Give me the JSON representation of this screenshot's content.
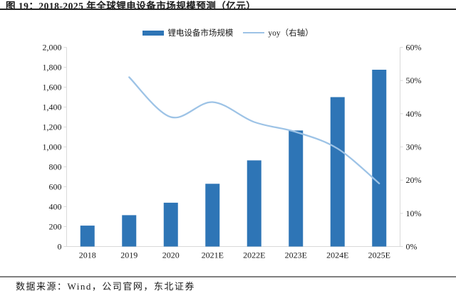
{
  "figure": {
    "title": "图 19：2018-2025 年全球锂电设备市场规模预测（亿元）",
    "source": "数据来源：Wind，公司官网，东北证券"
  },
  "legend": {
    "items": [
      {
        "label": "锂电设备市场规模",
        "marker": "bar",
        "color": "#2E75B6"
      },
      {
        "label": "yoy（右轴）",
        "marker": "line",
        "color": "#9DC3E6"
      }
    ]
  },
  "chart_data": {
    "type": "bar",
    "title": "2018-2025 年全球锂电设备市场规模预测（亿元）",
    "categories": [
      "2018",
      "2019",
      "2020",
      "2021E",
      "2022E",
      "2023E",
      "2024E",
      "2025E"
    ],
    "series": [
      {
        "name": "锂电设备市场规模",
        "type": "bar",
        "axis": "left",
        "color": "#2E75B6",
        "values": [
          210,
          315,
          440,
          630,
          865,
          1165,
          1500,
          1775
        ]
      },
      {
        "name": "yoy（右轴）",
        "type": "line",
        "axis": "right",
        "unit": "%",
        "color": "#9DC3E6",
        "values": [
          null,
          51,
          39,
          43.5,
          37.5,
          34.5,
          29.5,
          19
        ]
      }
    ],
    "left_axis": {
      "min": 0,
      "max": 2000,
      "step": 200,
      "tick_labels": [
        "0",
        "200",
        "400",
        "600",
        "800",
        "1,000",
        "1,200",
        "1,400",
        "1,600",
        "1,800",
        "2,000"
      ]
    },
    "right_axis": {
      "min": 0,
      "max": 60,
      "step": 10,
      "tick_labels": [
        "0%",
        "10%",
        "20%",
        "30%",
        "40%",
        "50%",
        "60%"
      ]
    },
    "grid": false,
    "legend_position": "top"
  },
  "colors": {
    "bar": "#2E75B6",
    "line": "#9DC3E6",
    "axis": "#D9D9D9",
    "text": "#1a1a1a",
    "title_rule": "#262626",
    "footer_rule": "#7f7f7f"
  }
}
